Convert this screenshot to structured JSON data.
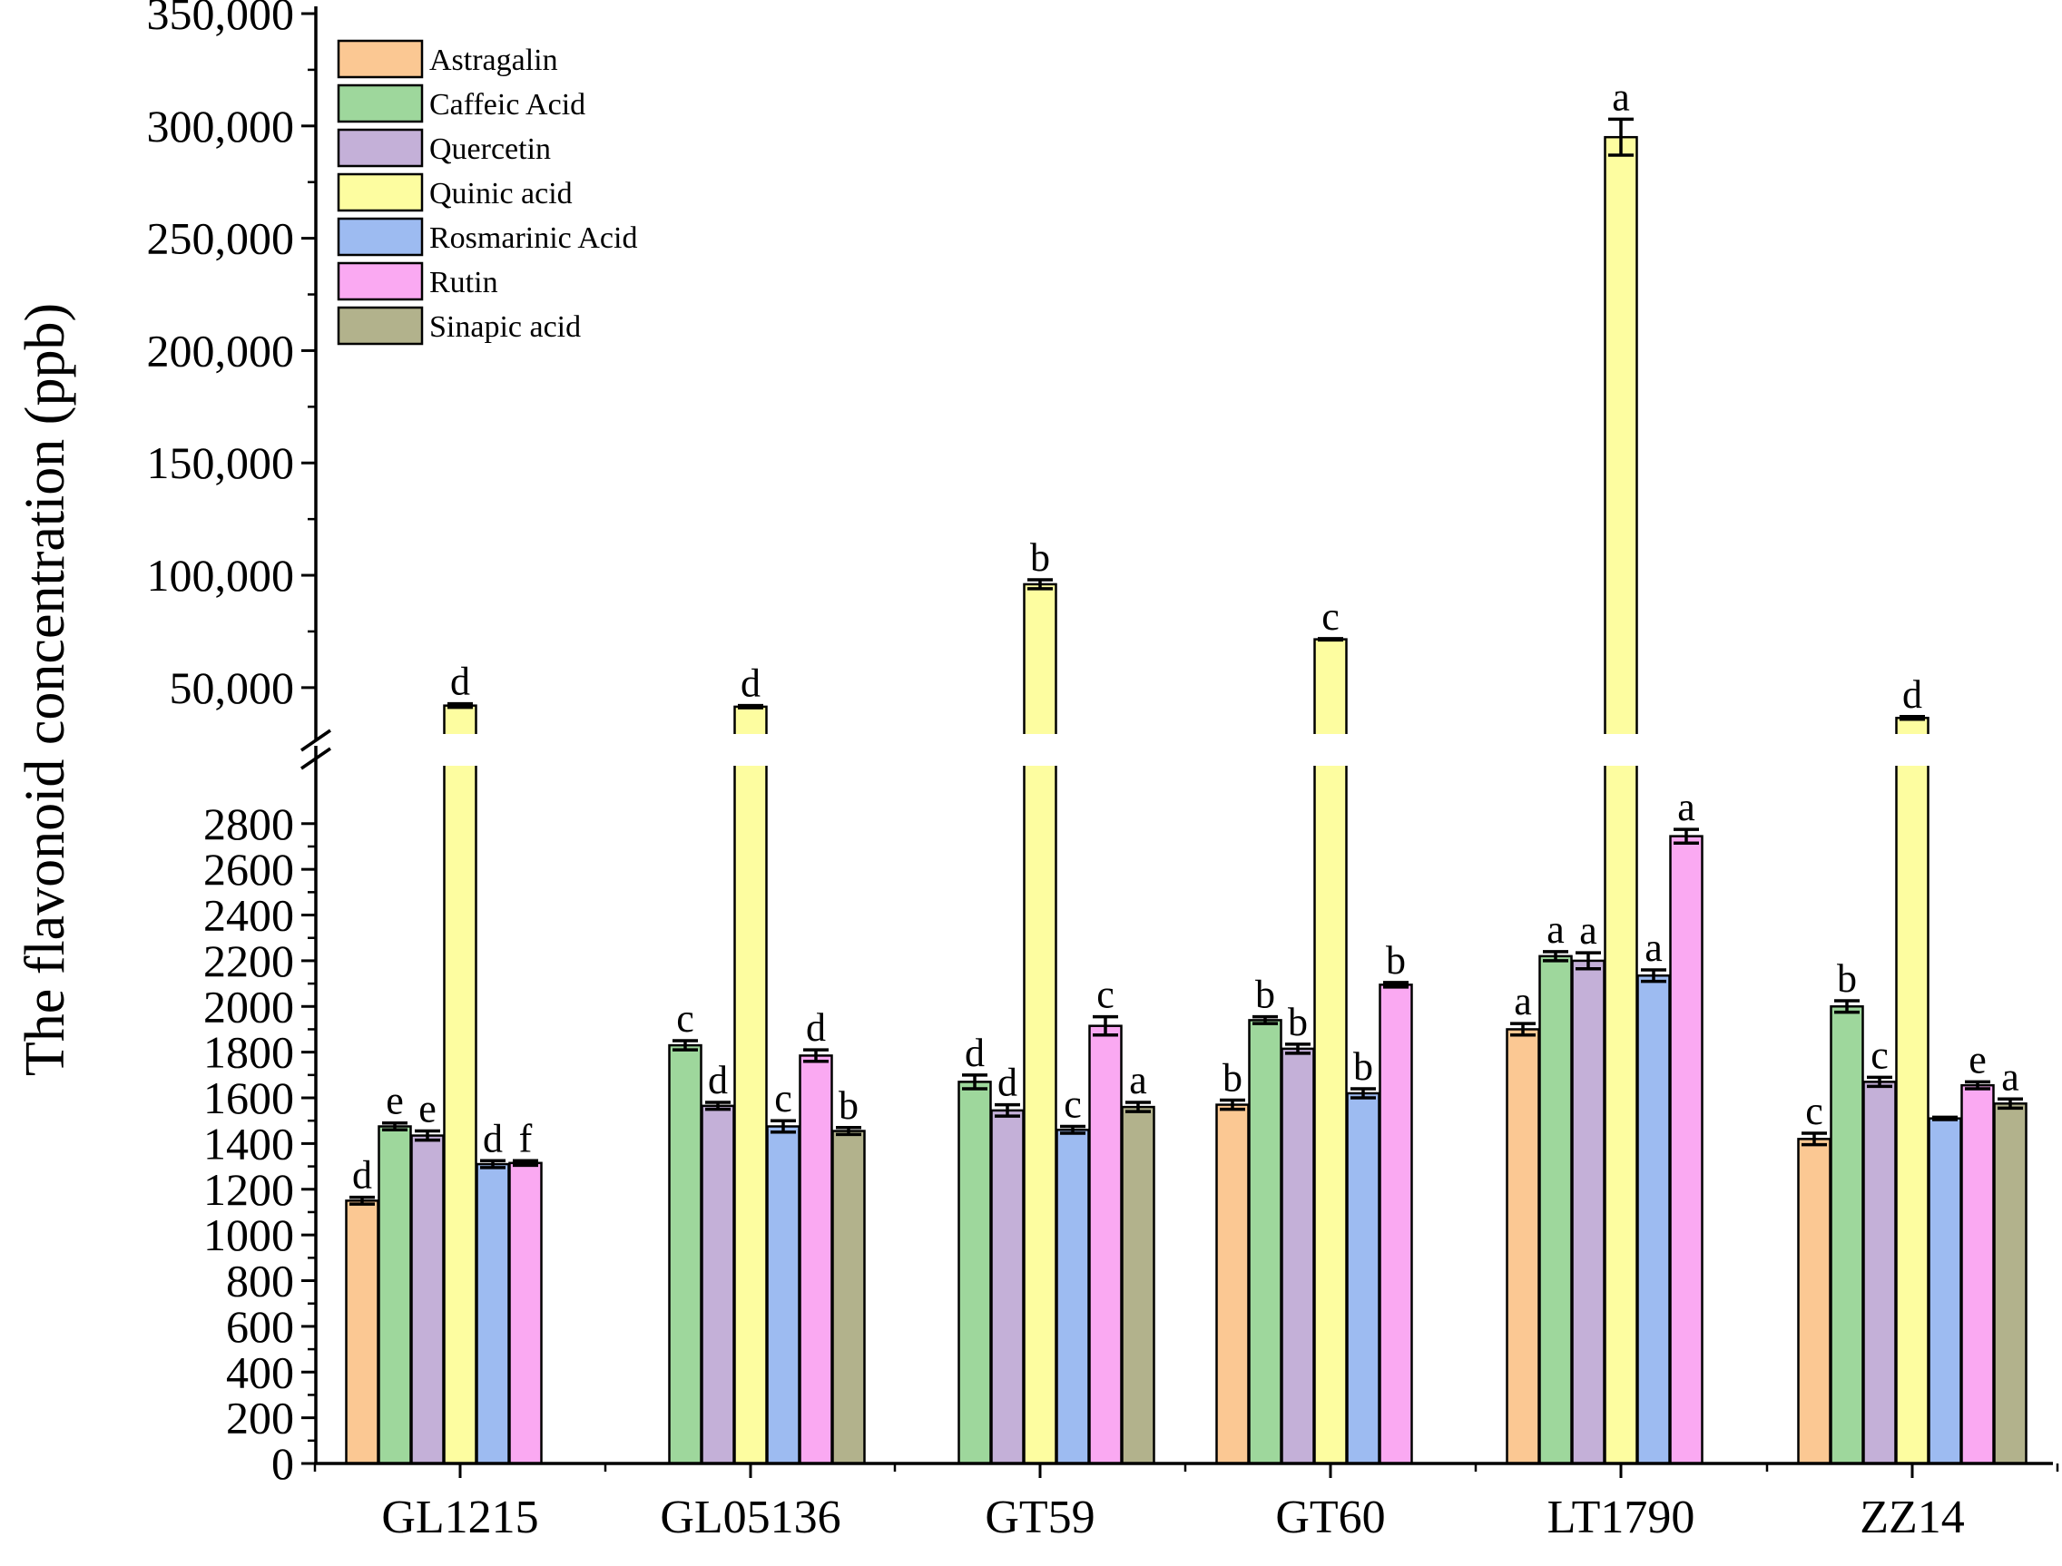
{
  "chart_data": {
    "type": "bar",
    "ylabel": "The flavonoid concentration (ppb)",
    "xlabel": "",
    "categories": [
      "GL1215",
      "GL05136",
      "GT59",
      "GT60",
      "LT1790",
      "ZZ14"
    ],
    "axis_break": {
      "lower_range": [
        0,
        2950
      ],
      "upper_range": [
        35000,
        350000
      ]
    },
    "lower_ticks": [
      "0",
      "200",
      "400",
      "600",
      "800",
      "1000",
      "1200",
      "1400",
      "1600",
      "1800",
      "2000",
      "2200",
      "2400",
      "2600",
      "2800"
    ],
    "upper_ticks": [
      "50,000",
      "100,000",
      "150,000",
      "200,000",
      "250,000",
      "300,000",
      "350,000"
    ],
    "legend_position": "top-left",
    "series": [
      {
        "name": "Astragalin",
        "color": "#FBC893",
        "values": [
          1150,
          null,
          null,
          1570,
          1900,
          1420
        ],
        "errors": [
          15,
          null,
          null,
          20,
          25,
          25
        ],
        "labels": [
          "d",
          "",
          "",
          "b",
          "a",
          "c"
        ]
      },
      {
        "name": "Caffeic Acid",
        "color": "#9ED79C",
        "values": [
          1475,
          1830,
          1670,
          1940,
          2220,
          2000
        ],
        "errors": [
          15,
          20,
          30,
          15,
          20,
          25
        ],
        "labels": [
          "e",
          "c",
          "d",
          "b",
          "a",
          "b"
        ]
      },
      {
        "name": "Quercetin",
        "color": "#C4B0D8",
        "values": [
          1435,
          1565,
          1545,
          1815,
          2200,
          1670
        ],
        "errors": [
          20,
          15,
          25,
          20,
          35,
          20
        ],
        "labels": [
          "e",
          "d",
          "d",
          "b",
          "a",
          "c"
        ]
      },
      {
        "name": "Quinic acid",
        "color": "#FDFDA0",
        "values": [
          42000,
          41500,
          96000,
          71500,
          295000,
          36500
        ],
        "errors": [
          800,
          500,
          2000,
          300,
          8000,
          600
        ],
        "labels": [
          "d",
          "d",
          "b",
          "c",
          "a",
          "d"
        ]
      },
      {
        "name": "Rosmarinic Acid",
        "color": "#9DBBF1",
        "values": [
          1310,
          1475,
          1460,
          1620,
          2135,
          1510
        ],
        "errors": [
          15,
          25,
          15,
          20,
          25,
          5
        ],
        "labels": [
          "d",
          "c",
          "c",
          "b",
          "a",
          ""
        ]
      },
      {
        "name": "Rutin",
        "color": "#FAA9F2",
        "values": [
          1315,
          1785,
          1915,
          2095,
          2745,
          1655
        ],
        "errors": [
          10,
          25,
          40,
          10,
          30,
          15
        ],
        "labels": [
          "f",
          "d",
          "c",
          "b",
          "a",
          "e"
        ]
      },
      {
        "name": "Sinapic acid",
        "color": "#B2B28C",
        "values": [
          null,
          1455,
          1560,
          null,
          null,
          1575
        ],
        "errors": [
          null,
          15,
          20,
          null,
          null,
          20
        ],
        "labels": [
          "",
          "b",
          "a",
          "",
          "",
          "a"
        ]
      }
    ]
  }
}
